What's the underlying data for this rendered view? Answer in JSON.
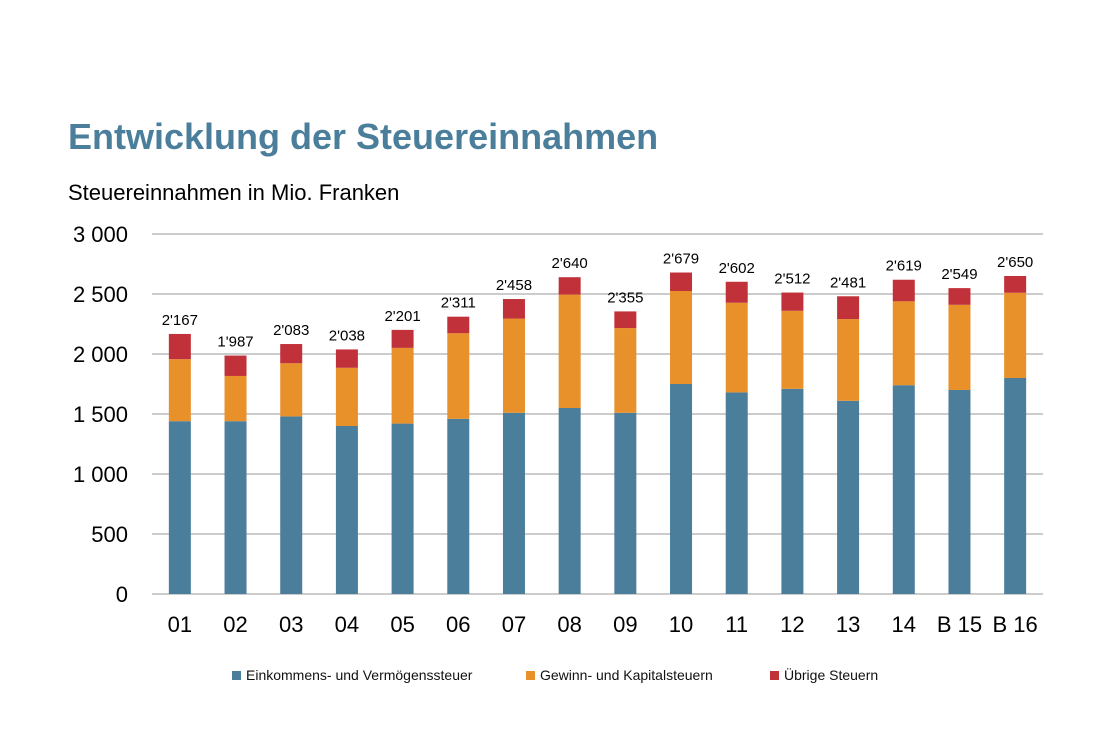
{
  "title": "Entwicklung der Steuereinnahmen",
  "subtitle": "Steuereinnahmen in Mio. Franken",
  "colors": {
    "series": [
      "#4a7e9b",
      "#e8902a",
      "#c0313a"
    ],
    "grid": "#9a9a9a"
  },
  "chart_data": {
    "type": "bar",
    "stacked": true,
    "categories": [
      "01",
      "02",
      "03",
      "04",
      "05",
      "06",
      "07",
      "08",
      "09",
      "10",
      "11",
      "12",
      "13",
      "14",
      "B 15",
      "B 16"
    ],
    "series": [
      {
        "name": "Einkommens- und Vermögenssteuer",
        "values": [
          1440,
          1440,
          1480,
          1400,
          1420,
          1460,
          1510,
          1550,
          1510,
          1750,
          1680,
          1710,
          1610,
          1740,
          1700,
          1800
        ]
      },
      {
        "name": "Gewinn- und Kapitalsteuern",
        "values": [
          517,
          377,
          443,
          485,
          631,
          713,
          785,
          945,
          706,
          775,
          747,
          650,
          681,
          699,
          710,
          710
        ]
      },
      {
        "name": "Übrige Steuern",
        "values": [
          210,
          170,
          160,
          153,
          150,
          138,
          163,
          145,
          139,
          154,
          175,
          152,
          190,
          180,
          139,
          140
        ]
      }
    ],
    "totals": [
      2167,
      1987,
      2083,
      2038,
      2201,
      2311,
      2458,
      2640,
      2355,
      2679,
      2602,
      2512,
      2481,
      2619,
      2549,
      2650
    ],
    "total_labels": [
      "2'167",
      "1'987",
      "2'083",
      "2'038",
      "2'201",
      "2'311",
      "2'458",
      "2'640",
      "2'355",
      "2'679",
      "2'602",
      "2'512",
      "2'481",
      "2'619",
      "2'549",
      "2'650"
    ],
    "yticks": [
      0,
      500,
      1000,
      1500,
      2000,
      2500,
      3000
    ],
    "ytick_labels": [
      "0",
      "500",
      "1 000",
      "1 500",
      "2 000",
      "2 500",
      "3 000"
    ],
    "ylim": [
      0,
      3000
    ],
    "grid": true,
    "legend_position": "bottom"
  }
}
